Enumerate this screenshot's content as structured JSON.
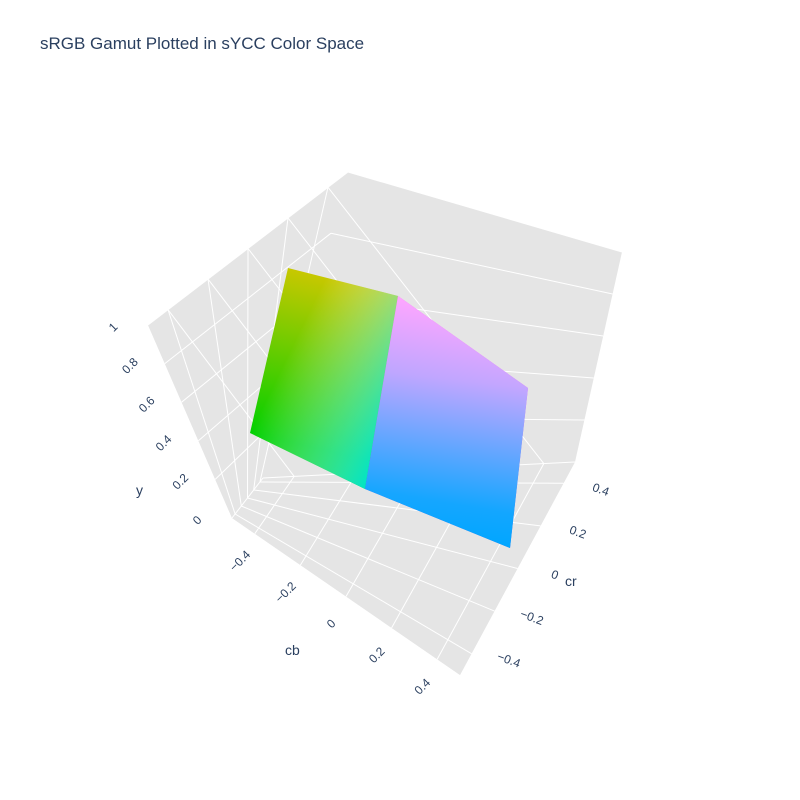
{
  "chart_data": {
    "type": "surface3d",
    "title": "sRGB Gamut Plotted in sYCC Color Space",
    "axes": {
      "cb": {
        "title": "cb",
        "ticks": [
          -0.4,
          -0.2,
          0,
          0.2,
          0.4
        ],
        "tick_labels": [
          "−0.4",
          "−0.2",
          "0",
          "0.2",
          "0.4"
        ],
        "range": [
          -0.5,
          0.5
        ]
      },
      "cr": {
        "title": "cr",
        "ticks": [
          -0.4,
          -0.2,
          0,
          0.2,
          0.4
        ],
        "tick_labels": [
          "−0.4",
          "−0.2",
          "0",
          "0.2",
          "0.4"
        ],
        "range": [
          -0.5,
          0.5
        ]
      },
      "y": {
        "title": "y",
        "ticks": [
          0,
          0.2,
          0.4,
          0.6,
          0.8,
          1
        ],
        "tick_labels": [
          "0",
          "0.2",
          "0.4",
          "0.6",
          "0.8",
          "1"
        ],
        "range": [
          0,
          1
        ]
      }
    },
    "surface": {
      "description_of_face": "sRGB cube faces with blue = max",
      "vertices": [
        {
          "name": "green",
          "rgb": [
            0,
            1,
            0
          ],
          "y": 0.587,
          "cb": -0.331,
          "cr": -0.419,
          "color": "#00d000"
        },
        {
          "name": "yellow",
          "rgb": [
            1,
            1,
            0
          ],
          "y": 0.886,
          "cb": -0.5,
          "cr": 0.081,
          "color": "#c8c800"
        },
        {
          "name": "white",
          "rgb": [
            1,
            1,
            1
          ],
          "y": 1.0,
          "cb": 0,
          "cr": 0,
          "color": "#ffffff"
        },
        {
          "name": "cyan",
          "rgb": [
            0,
            1,
            1
          ],
          "y": 0.701,
          "cb": 0.169,
          "cr": -0.5,
          "color": "#00ffff"
        },
        {
          "name": "magenta",
          "rgb": [
            1,
            0,
            1
          ],
          "y": 0.413,
          "cb": 0.331,
          "cr": 0.419,
          "color": "#ff00ff"
        },
        {
          "name": "blue",
          "rgb": [
            0,
            0,
            1
          ],
          "y": 0.114,
          "cb": 0.5,
          "cr": -0.081,
          "color": "#0000ff"
        }
      ]
    },
    "grid": true,
    "background": "#e5e5e5",
    "gridline_color": "#ffffff"
  }
}
